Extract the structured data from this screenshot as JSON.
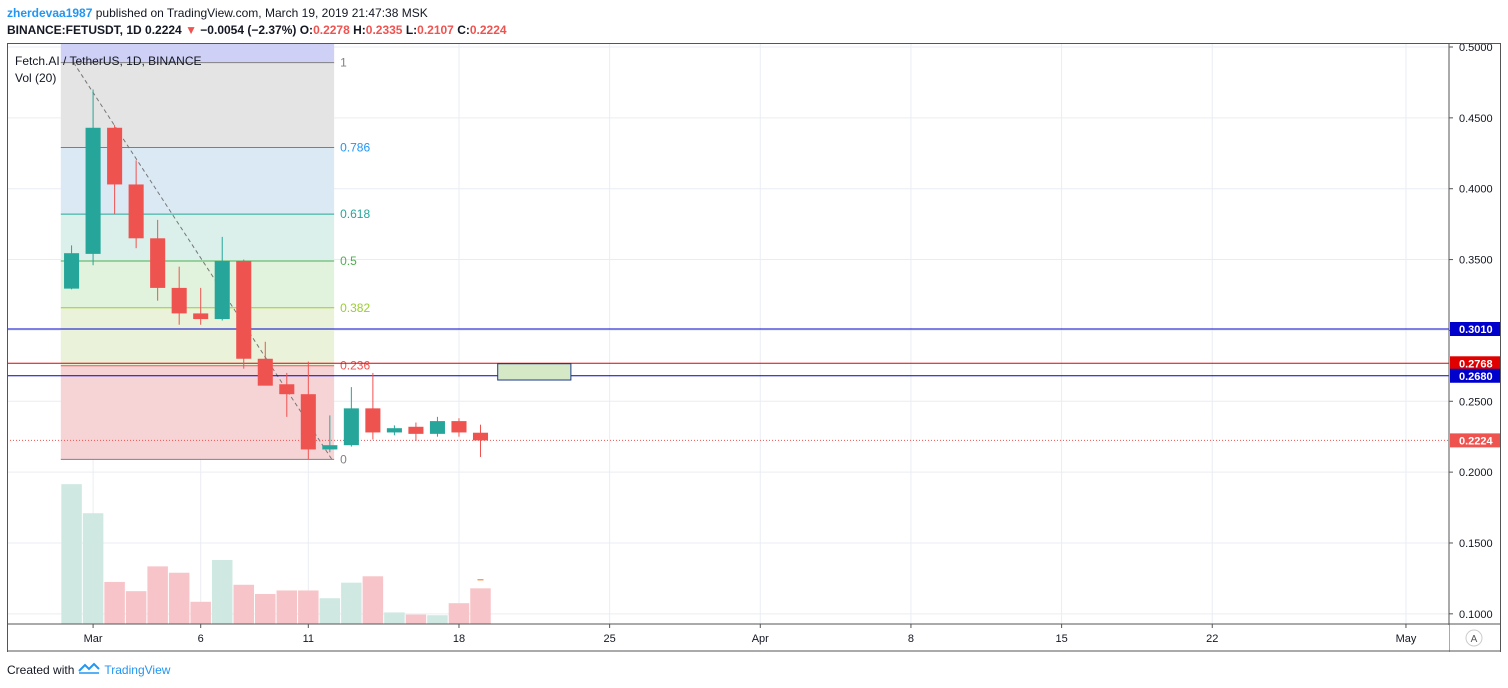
{
  "header": {
    "user": "zherdevaa1987",
    "published": "published on TradingView.com, March 19, 2019 21:47:38 MSK",
    "symbol": "BINANCE:FETUSDT, 1D",
    "last": "0.2224",
    "change": "−0.0054 (−2.37%)",
    "o_label": "O:",
    "o": "0.2278",
    "h_label": "H:",
    "h": "0.2335",
    "l_label": "L:",
    "l": "0.2107",
    "c_label": "C:",
    "c": "0.2224"
  },
  "legend": {
    "title": "Fetch.AI / TetherUS, 1D, BINANCE",
    "vol": "Vol (20)"
  },
  "footer": {
    "created": "Created with",
    "brand": "TradingView"
  },
  "colors": {
    "up": "#26a69a",
    "down": "#ef5350",
    "vol_up": "#cfe9e2",
    "vol_down": "#f7c5c9",
    "hline_blue": "#0000cc",
    "hline_red": "#e00000",
    "grid": "#e9edf3"
  },
  "chart_data": {
    "type": "candlestick",
    "symbol": "FETUSDT",
    "interval": "1D",
    "ylim": [
      0.09,
      0.5
    ],
    "yticks": [
      0.1,
      0.15,
      0.2,
      0.25,
      0.3,
      0.35,
      0.4,
      0.45,
      0.5
    ],
    "ytick_labels": [
      "0.1000",
      "0.1500",
      "0.2000",
      "0.2500",
      "0.3000",
      "0.3500",
      "0.4000",
      "0.4500",
      "0.5000"
    ],
    "xticks": [
      {
        "date": "2019-03-01",
        "label": "Mar"
      },
      {
        "date": "2019-03-06",
        "label": "6"
      },
      {
        "date": "2019-03-11",
        "label": "11"
      },
      {
        "date": "2019-03-18",
        "label": "18"
      },
      {
        "date": "2019-03-25",
        "label": "25"
      },
      {
        "date": "2019-04-01",
        "label": "Apr"
      },
      {
        "date": "2019-04-08",
        "label": "8"
      },
      {
        "date": "2019-04-15",
        "label": "15"
      },
      {
        "date": "2019-04-22",
        "label": "22"
      },
      {
        "date": "2019-05-01",
        "label": "May"
      }
    ],
    "x_range": [
      "2019-02-25",
      "2019-05-03"
    ],
    "candles": [
      {
        "date": "2019-02-28",
        "open": 0.3295,
        "high": 0.36,
        "low": 0.329,
        "close": 0.3545,
        "volume": 0.1915
      },
      {
        "date": "2019-03-01",
        "open": 0.354,
        "high": 0.47,
        "low": 0.346,
        "close": 0.443,
        "volume": 0.171
      },
      {
        "date": "2019-03-02",
        "open": 0.443,
        "high": 0.445,
        "low": 0.382,
        "close": 0.403,
        "volume": 0.1225
      },
      {
        "date": "2019-03-03",
        "open": 0.403,
        "high": 0.42,
        "low": 0.358,
        "close": 0.365,
        "volume": 0.116
      },
      {
        "date": "2019-03-04",
        "open": 0.365,
        "high": 0.378,
        "low": 0.321,
        "close": 0.33,
        "volume": 0.1335
      },
      {
        "date": "2019-03-05",
        "open": 0.33,
        "high": 0.345,
        "low": 0.304,
        "close": 0.312,
        "volume": 0.129
      },
      {
        "date": "2019-03-06",
        "open": 0.312,
        "high": 0.33,
        "low": 0.304,
        "close": 0.308,
        "volume": 0.1085
      },
      {
        "date": "2019-03-07",
        "open": 0.308,
        "high": 0.366,
        "low": 0.307,
        "close": 0.349,
        "volume": 0.138
      },
      {
        "date": "2019-03-08",
        "open": 0.349,
        "high": 0.35,
        "low": 0.273,
        "close": 0.28,
        "volume": 0.1205
      },
      {
        "date": "2019-03-09",
        "open": 0.28,
        "high": 0.292,
        "low": 0.264,
        "close": 0.261,
        "volume": 0.114
      },
      {
        "date": "2019-03-10",
        "open": 0.262,
        "high": 0.27,
        "low": 0.239,
        "close": 0.255,
        "volume": 0.1165
      },
      {
        "date": "2019-03-11",
        "open": 0.255,
        "high": 0.278,
        "low": 0.209,
        "close": 0.216,
        "volume": 0.1165
      },
      {
        "date": "2019-03-12",
        "open": 0.216,
        "high": 0.24,
        "low": 0.214,
        "close": 0.219,
        "volume": 0.111
      },
      {
        "date": "2019-03-13",
        "open": 0.219,
        "high": 0.26,
        "low": 0.218,
        "close": 0.245,
        "volume": 0.122
      },
      {
        "date": "2019-03-14",
        "open": 0.245,
        "high": 0.27,
        "low": 0.223,
        "close": 0.228,
        "volume": 0.1265
      },
      {
        "date": "2019-03-15",
        "open": 0.228,
        "high": 0.233,
        "low": 0.226,
        "close": 0.231,
        "volume": 0.101
      },
      {
        "date": "2019-03-16",
        "open": 0.232,
        "high": 0.235,
        "low": 0.222,
        "close": 0.227,
        "volume": 0.0995
      },
      {
        "date": "2019-03-17",
        "open": 0.227,
        "high": 0.239,
        "low": 0.225,
        "close": 0.236,
        "volume": 0.099
      },
      {
        "date": "2019-03-18",
        "open": 0.236,
        "high": 0.238,
        "low": 0.225,
        "close": 0.228,
        "volume": 0.1075
      },
      {
        "date": "2019-03-19",
        "open": 0.2278,
        "high": 0.2335,
        "low": 0.2107,
        "close": 0.2224,
        "volume": 0.118
      }
    ],
    "fibonacci": {
      "start_date": "2019-02-28",
      "end_date": "2019-03-12",
      "high": 0.489,
      "low": 0.209,
      "levels": [
        {
          "ratio": 1,
          "label": "1",
          "color": "#808080",
          "fill": "#d8dbe0"
        },
        {
          "ratio": 0.786,
          "label": "0.786",
          "color": "#2196f3",
          "fill": "#dbe9f5"
        },
        {
          "ratio": 0.618,
          "label": "0.618",
          "color": "#26a69a",
          "fill": "#dbf0ea"
        },
        {
          "ratio": 0.5,
          "label": "0.5",
          "color": "#4caf50",
          "fill": "#e1f3dc"
        },
        {
          "ratio": 0.382,
          "label": "0.382",
          "color": "#9acd32",
          "fill": "#eaf3d9"
        },
        {
          "ratio": 0.236,
          "label": "0.236",
          "color": "#ef5350",
          "fill": "#f6d4d6"
        },
        {
          "ratio": 0,
          "label": "0",
          "color": "#808080",
          "fill": ""
        }
      ],
      "top_fill": "#e4e4e4"
    },
    "horizontal_lines": [
      {
        "price": 0.301,
        "label": "0.3010",
        "color": "#0000cc"
      },
      {
        "price": 0.2768,
        "label": "0.2768",
        "color": "#e00000"
      },
      {
        "price": 0.268,
        "label": "0.2680",
        "color": "#0000cc"
      }
    ],
    "last_price": {
      "price": 0.2224,
      "label": "0.2224",
      "color": "#ef5350"
    },
    "rectangle": {
      "start_date": "2019-03-20",
      "end_date": "2019-03-23",
      "top": 0.2765,
      "bottom": 0.265
    },
    "volume_marker": {
      "date": "2019-03-19",
      "value": 0.124
    },
    "auto_scale_label": "A"
  }
}
